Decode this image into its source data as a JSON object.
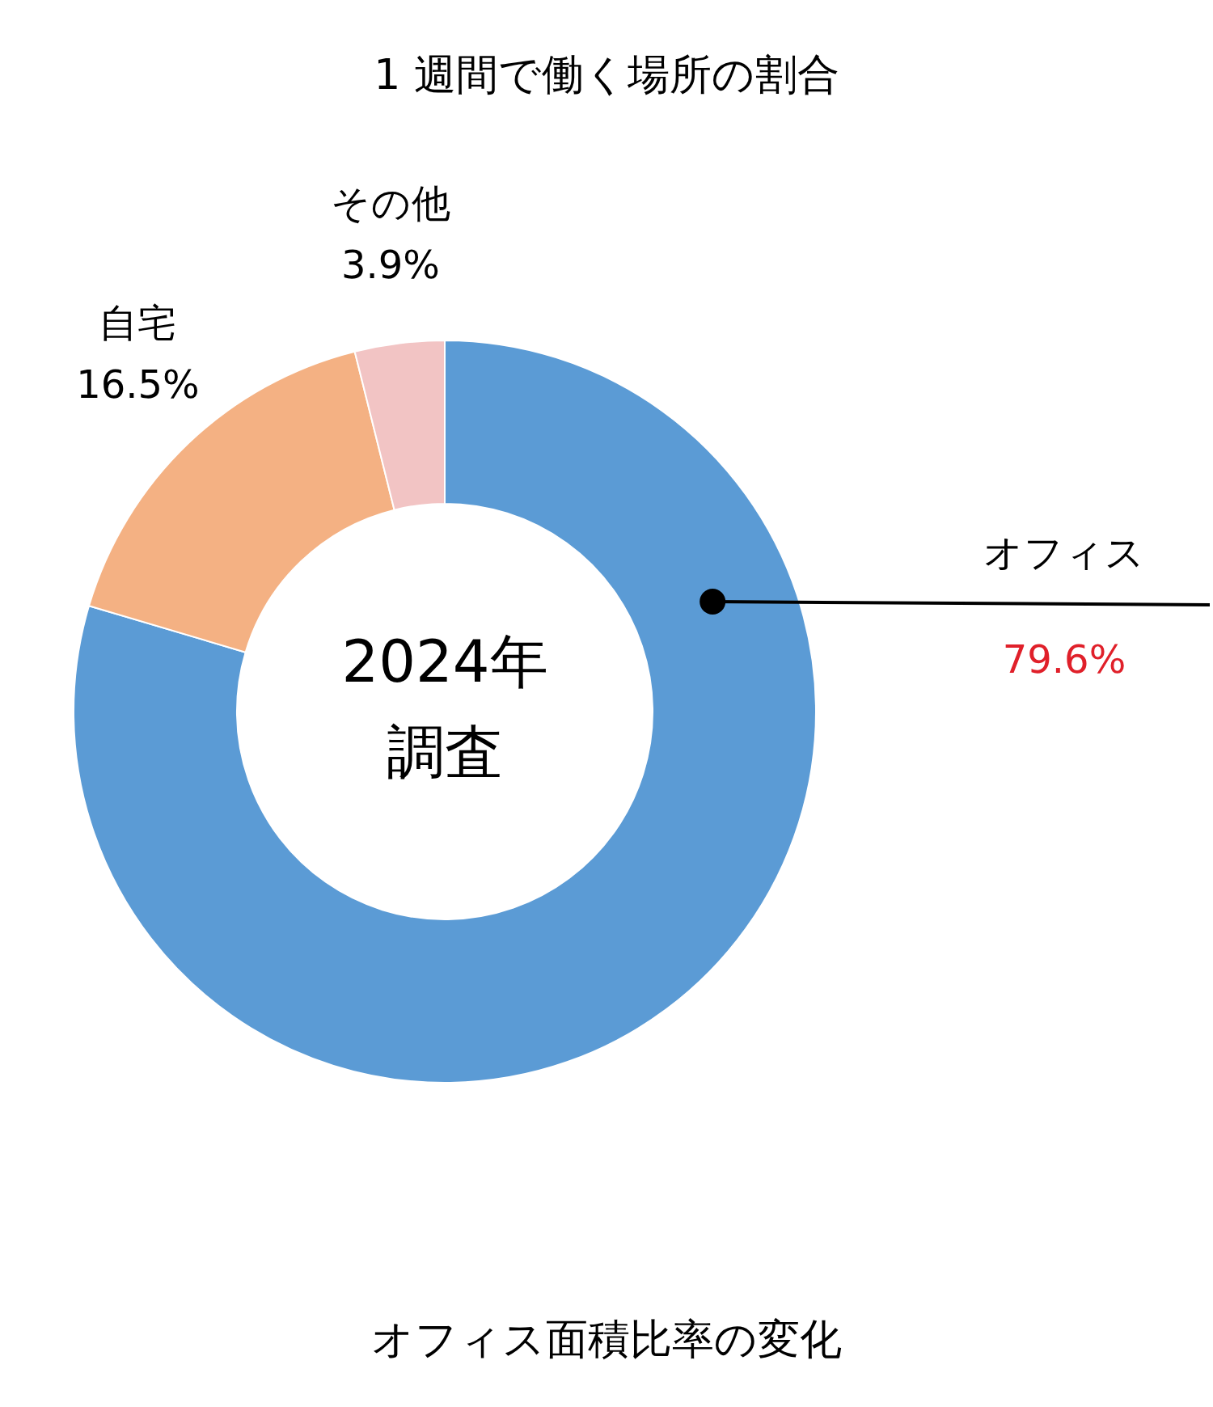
{
  "chart_data": {
    "type": "donut",
    "title": "1 週間で働く場所の割合",
    "categories": [
      "オフィス",
      "自宅",
      "その他"
    ],
    "values": [
      79.6,
      16.5,
      3.9
    ],
    "value_labels": [
      "79.6%",
      "16.5%",
      "3.9%"
    ],
    "colors": [
      "#5b9bd5",
      "#f4b183",
      "#f2c4c4"
    ],
    "annotations": [
      "2024年",
      "調査",
      "オフィス面積比率の変化"
    ],
    "legend": false
  }
}
